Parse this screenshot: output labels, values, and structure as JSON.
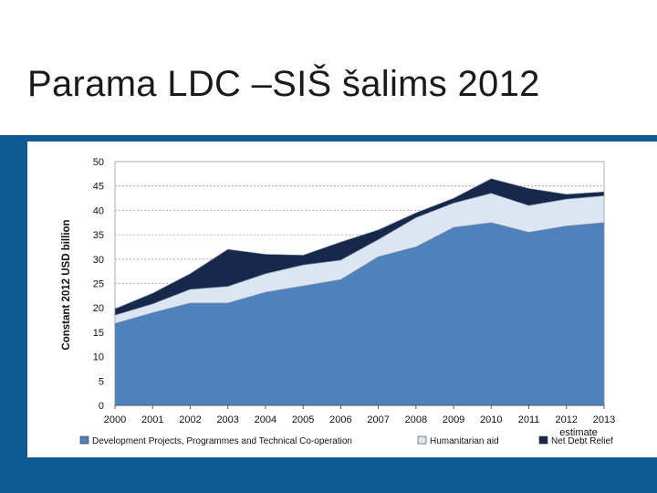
{
  "slide": {
    "title": "Parama LDC –SIŠ šalims  2012"
  },
  "colors": {
    "band": "#0d5a94",
    "development": "#4f81bd",
    "humanitarian": "#dce6f2",
    "debt_relief": "#17294a"
  },
  "chart_data": {
    "type": "area",
    "stacked": true,
    "title": "",
    "xlabel": "",
    "ylabel": "Constant  2012 USD billion",
    "x": [
      "2000",
      "2001",
      "2002",
      "2003",
      "2004",
      "2005",
      "2006",
      "2007",
      "2008",
      "2009",
      "2010",
      "2011",
      "2012",
      "2013"
    ],
    "x_note": "estimate",
    "ylim": [
      0,
      50
    ],
    "yticks": [
      0,
      5,
      10,
      15,
      20,
      25,
      30,
      35,
      40,
      45,
      50
    ],
    "grid": true,
    "legend_position": "bottom",
    "series": [
      {
        "name": "Development Projects, Programmes and Technical Co-operation",
        "color": "#4f81bd",
        "values": [
          16.8,
          19.0,
          21.0,
          21.0,
          23.2,
          24.5,
          25.8,
          30.5,
          32.5,
          36.5,
          37.5,
          35.5,
          36.8,
          37.5
        ]
      },
      {
        "name": "Humanitarian aid",
        "color": "#dce6f2",
        "values": [
          1.7,
          1.8,
          2.8,
          3.4,
          3.8,
          4.3,
          4.0,
          3.5,
          6.0,
          5.0,
          6.0,
          5.5,
          5.5,
          5.5
        ]
      },
      {
        "name": "Net Debt Relief",
        "color": "#17294a",
        "values": [
          1.3,
          2.2,
          3.2,
          7.6,
          4.0,
          2.0,
          3.7,
          2.0,
          1.0,
          1.0,
          3.0,
          3.5,
          1.0,
          0.8
        ]
      }
    ]
  }
}
